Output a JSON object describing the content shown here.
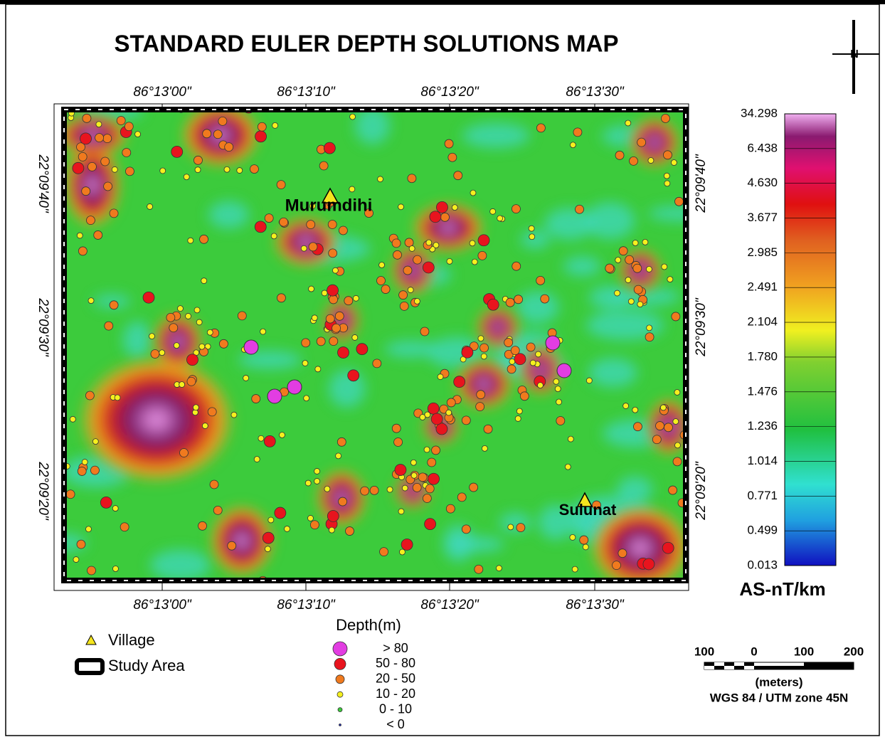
{
  "title": "STANDARD EULER DEPTH SOLUTIONS MAP",
  "north": "N",
  "top_axis": [
    "86°13'00\"",
    "86°13'10\"",
    "86°13'20\"",
    "86°13'30\""
  ],
  "bottom_axis": [
    "86°13'00\"",
    "86°13'10\"",
    "86°13'20\"",
    "86°13'30\""
  ],
  "left_axis": [
    "22°09'40\"",
    "22°09'30\"",
    "22°09'20\""
  ],
  "right_axis": [
    "22°09'40\"",
    "22°09'30\"",
    "22°09'20\""
  ],
  "villages": [
    "Murumdihi",
    "Sulunat"
  ],
  "colorbar": {
    "labels": [
      "34.298",
      "6.438",
      "4.630",
      "3.677",
      "2.985",
      "2.491",
      "2.104",
      "1.780",
      "1.476",
      "1.236",
      "1.014",
      "0.771",
      "0.499",
      "0.013"
    ],
    "unit": "AS-nT/km"
  },
  "legend": {
    "village": "Village",
    "study_area": "Study Area",
    "depth_title": "Depth(m)",
    "classes": [
      {
        "color": "#e23de2",
        "label": ">  80"
      },
      {
        "color": "#e8141e",
        "label": "50  -  80"
      },
      {
        "color": "#f07a1e",
        "label": "20  -  50"
      },
      {
        "color": "#f5f01e",
        "label": "10  -  20"
      },
      {
        "color": "#3cc83c",
        "label": "0  -  10"
      },
      {
        "color": "#1e28b4",
        "label": "<  0"
      }
    ]
  },
  "scale": {
    "ticks": [
      "100",
      "0",
      "100",
      "200"
    ],
    "unit": "(meters)",
    "projection": "WGS 84 / UTM zone 45N"
  }
}
